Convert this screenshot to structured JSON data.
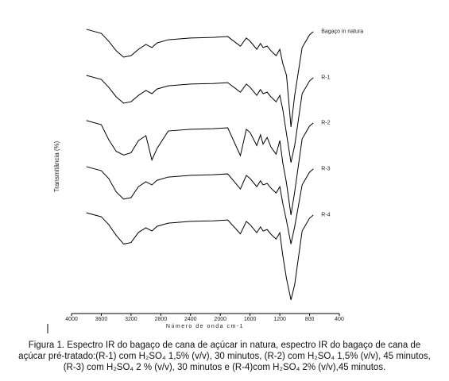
{
  "chart_data": {
    "type": "line",
    "x_label": "Número de onda cm-1",
    "y_label": "Transmitância (%)",
    "caption": "Figura 1. Espectro IR do bagaço de cana de açúcar in natura, espectro IR do bagaço de cana de açúcar pré-tratado:(R-1) com H₂SO₄ 1,5% (v/v), 30 minutos, (R-2) com H₂SO₄ 1,5% (v/v), 45 minutos, (R-3) com H₂SO₄ 2 % (v/v), 30 minutos e (R-4)com H₂SO₄ 2% (v/v),45 minutos.",
    "x": [
      3800,
      3600,
      3500,
      3400,
      3300,
      3200,
      3100,
      3000,
      2920,
      2850,
      2700,
      2400,
      2100,
      1900,
      1730,
      1650,
      1600,
      1510,
      1460,
      1425,
      1370,
      1320,
      1250,
      1200,
      1160,
      1110,
      1050,
      1000,
      900,
      800,
      750
    ],
    "series": [
      {
        "name": "Bagaço in natura",
        "color": "#000000",
        "values": [
          98.1,
          96.7,
          94.0,
          90.7,
          88.5,
          89.0,
          91.2,
          92.9,
          91.8,
          93.4,
          94.5,
          95.1,
          95.3,
          95.6,
          92.3,
          95.1,
          94.0,
          91.2,
          93.2,
          91.8,
          92.3,
          90.7,
          89.0,
          91.2,
          86.3,
          82.2,
          64.4,
          75.3,
          91.8,
          96.2,
          97.3
        ]
      },
      {
        "name": "R-1",
        "color": "#000000",
        "values": [
          82.2,
          80.8,
          78.1,
          74.8,
          72.6,
          73.1,
          75.3,
          77.0,
          75.9,
          77.5,
          78.6,
          79.2,
          79.4,
          79.7,
          76.4,
          79.2,
          78.1,
          75.3,
          77.3,
          75.9,
          76.4,
          74.8,
          73.1,
          75.3,
          70.4,
          62.0,
          52.1,
          58.0,
          75.9,
          80.3,
          81.4
        ]
      },
      {
        "name": "R-2",
        "color": "#000000",
        "values": [
          66.6,
          65.2,
          60.0,
          56.0,
          54.7,
          55.5,
          59.7,
          61.4,
          53.0,
          57.0,
          63.0,
          63.6,
          63.8,
          64.1,
          54.5,
          63.6,
          62.5,
          58.0,
          61.7,
          58.5,
          60.8,
          57.5,
          55.0,
          59.7,
          52.0,
          45.0,
          34.0,
          42.0,
          60.3,
          64.7,
          65.8
        ]
      },
      {
        "name": "R-3",
        "color": "#000000",
        "values": [
          50.7,
          49.3,
          46.6,
          42.0,
          39.5,
          40.0,
          43.8,
          45.5,
          44.4,
          46.0,
          47.1,
          47.7,
          47.9,
          48.2,
          43.0,
          47.7,
          46.6,
          43.8,
          45.8,
          44.4,
          44.9,
          43.3,
          41.6,
          43.8,
          38.0,
          32.0,
          24.0,
          30.0,
          44.4,
          48.8,
          49.9
        ]
      },
      {
        "name": "R-4",
        "color": "#000000",
        "values": [
          34.8,
          33.4,
          30.7,
          27.0,
          24.0,
          24.5,
          28.0,
          29.6,
          28.5,
          30.1,
          31.2,
          31.8,
          32.0,
          32.3,
          27.5,
          31.8,
          30.7,
          27.9,
          29.9,
          28.5,
          29.0,
          27.4,
          25.7,
          27.9,
          20.0,
          12.0,
          4.7,
          10.0,
          28.5,
          32.9,
          34.0
        ]
      }
    ],
    "xlim": [
      4000,
      400
    ],
    "xticks": [
      4000,
      3600,
      3200,
      2800,
      2400,
      2000,
      1600,
      1200,
      800,
      400
    ],
    "ylim": [
      0,
      100
    ]
  }
}
